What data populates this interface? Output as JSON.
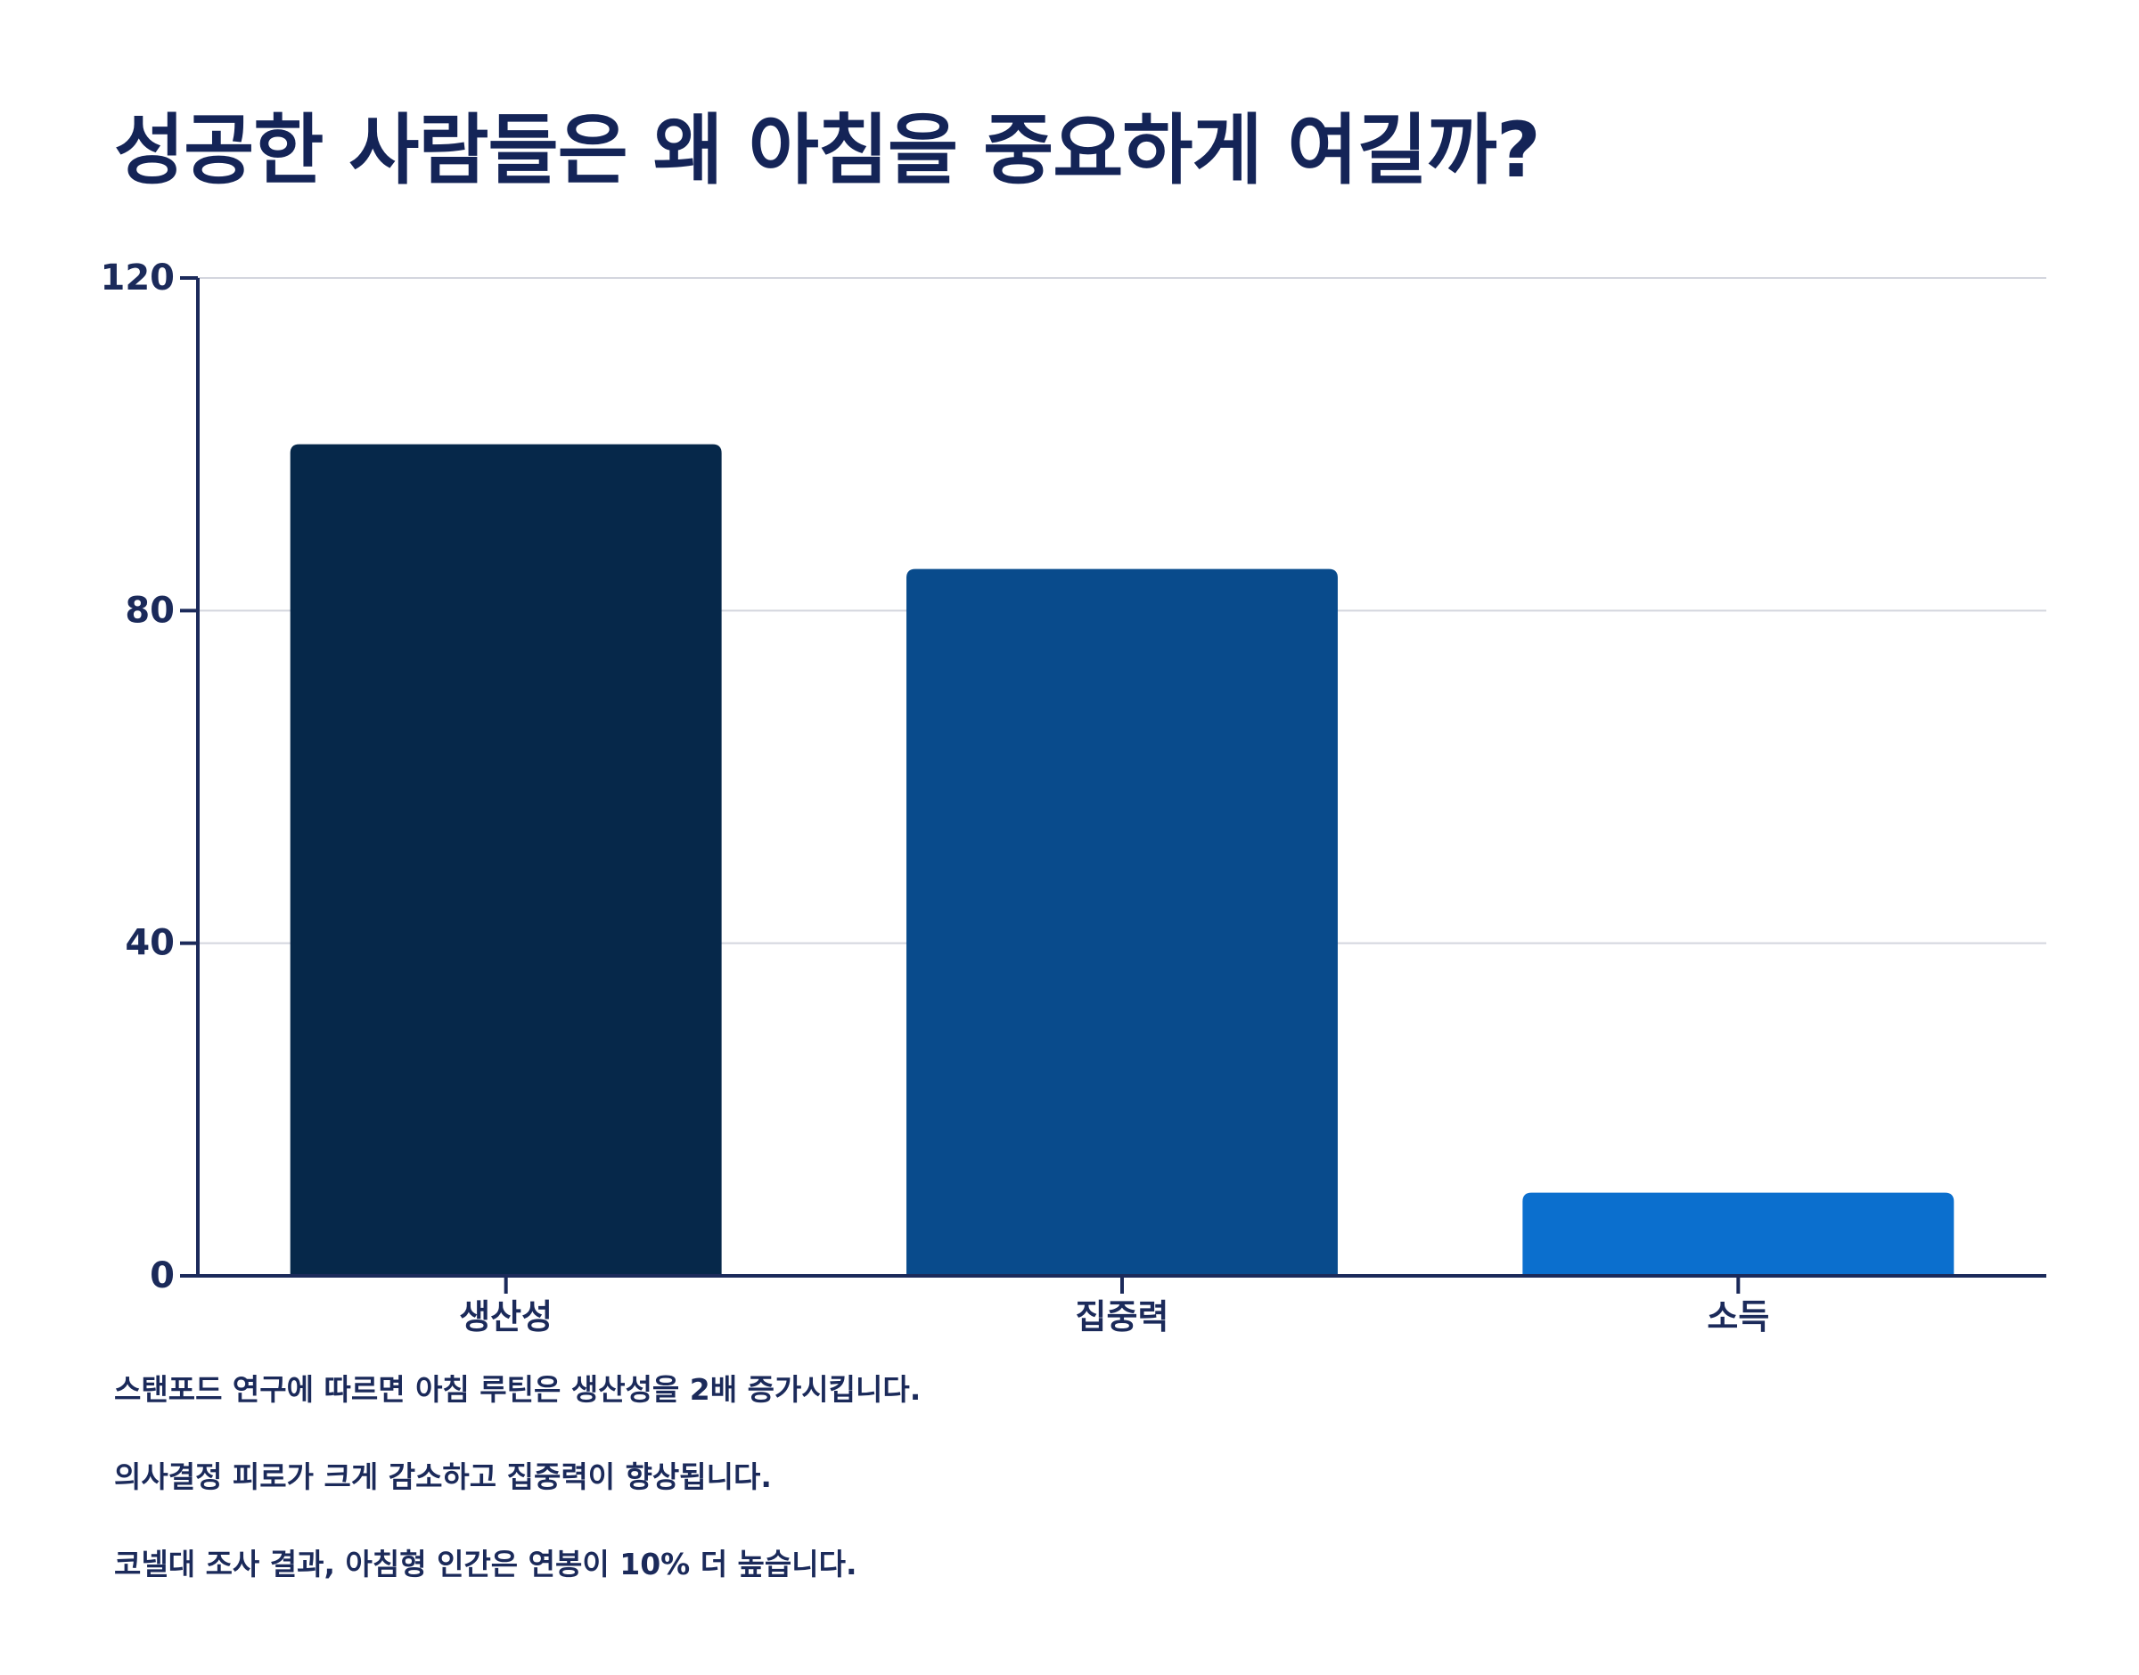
{
  "chart_data": {
    "type": "bar",
    "title": "성공한 사람들은 왜 아침을 중요하게 여길까?",
    "categories": [
      "생산성",
      "집중력",
      "소득"
    ],
    "values": [
      100,
      85,
      10
    ],
    "colors": [
      "#06284a",
      "#094b8c",
      "#0b6fce"
    ],
    "ylim": [
      0,
      120
    ],
    "yticks": [
      0,
      40,
      80,
      120
    ],
    "grid": true,
    "xlabel": "",
    "ylabel": ""
  },
  "notes": [
    "스탠포드 연구에 따르면 아침 루틴은 생산성을 2배 증가시킵니다.",
    "의사결정 피로가 크게 감소하고 집중력이 향상됩니다.",
    "코넬대 조사 결과, 아침형 인간은 연봉이 10% 더 높습니다."
  ]
}
